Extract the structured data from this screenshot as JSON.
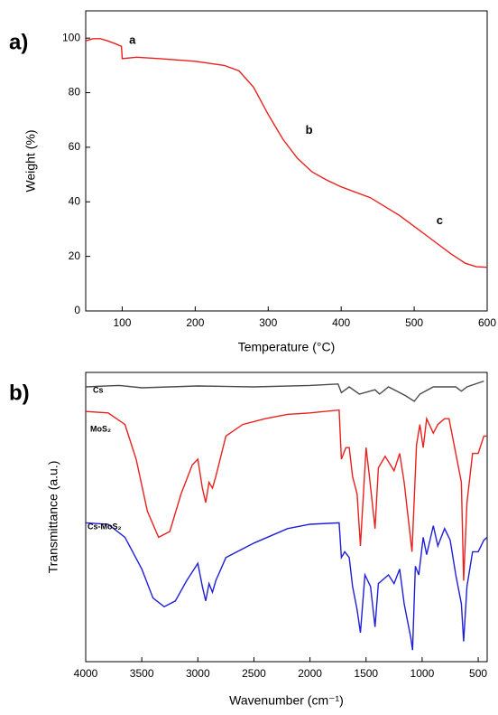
{
  "chart_data": [
    {
      "type": "line",
      "label": "a)",
      "xlabel": "Temperature (°C)",
      "ylabel": "Weight (%)",
      "xlim": [
        50,
        600
      ],
      "ylim": [
        0,
        110
      ],
      "xticks": [
        100,
        200,
        300,
        400,
        500,
        600
      ],
      "yticks": [
        0,
        20,
        40,
        60,
        80,
        100
      ],
      "series": [
        {
          "color": "#e8211f",
          "x": [
            50,
            60,
            70,
            80,
            90,
            99,
            100,
            120,
            150,
            200,
            240,
            260,
            280,
            300,
            320,
            340,
            360,
            380,
            400,
            440,
            480,
            520,
            550,
            570,
            585,
            600
          ],
          "values": [
            99,
            99.8,
            99.8,
            99,
            98,
            97,
            92.5,
            93,
            92.5,
            91.5,
            90,
            88,
            82,
            72,
            63,
            56,
            51,
            48,
            45.5,
            41.5,
            35,
            27,
            21,
            17.5,
            16.2,
            16
          ]
        }
      ],
      "annotations": [
        {
          "text": "a",
          "x": 114,
          "y": 99
        },
        {
          "text": "b",
          "x": 356,
          "y": 66
        },
        {
          "text": "c",
          "x": 535,
          "y": 33
        }
      ]
    },
    {
      "type": "line",
      "label": "b)",
      "xlabel": "Wavenumber (cm⁻¹)",
      "ylabel": "Transmittance (a.u.)",
      "xlim": [
        4000,
        420
      ],
      "ylim": [
        0,
        100
      ],
      "xticks": [
        4000,
        3500,
        3000,
        2500,
        2000,
        1500,
        1000,
        500
      ],
      "series": [
        {
          "name": "Cs",
          "color": "#4a4a4a",
          "x": [
            4000,
            3700,
            3500,
            3000,
            2500,
            2000,
            1750,
            1720,
            1650,
            1560,
            1420,
            1380,
            1300,
            1150,
            1070,
            1020,
            900,
            700,
            650,
            600,
            450
          ],
          "values": [
            95,
            95.5,
            94.7,
            95.3,
            95,
            95.5,
            96,
            93,
            95,
            92.5,
            94,
            92.5,
            95,
            92,
            90,
            92.5,
            95,
            95,
            93.5,
            95,
            97
          ]
        },
        {
          "name": "MoS₂",
          "color": "#e8211f",
          "x": [
            4000,
            3800,
            3650,
            3550,
            3450,
            3350,
            3250,
            3150,
            3050,
            3000,
            2960,
            2930,
            2900,
            2870,
            2840,
            2750,
            2600,
            2400,
            2200,
            2000,
            1740,
            1720,
            1680,
            1650,
            1620,
            1580,
            1550,
            1500,
            1470,
            1420,
            1390,
            1330,
            1250,
            1200,
            1160,
            1090,
            1050,
            1020,
            990,
            960,
            900,
            860,
            800,
            760,
            700,
            650,
            630,
            600,
            550,
            500,
            450,
            420
          ],
          "values": [
            86.5,
            86,
            82,
            70,
            52,
            43,
            45,
            58,
            68,
            70,
            60,
            55,
            62,
            60,
            64,
            78,
            82,
            84,
            85.5,
            86,
            87,
            70,
            74,
            74,
            64,
            58,
            40,
            74,
            64,
            46,
            67,
            71,
            66,
            72,
            62,
            38,
            75,
            82,
            74,
            84,
            79,
            82,
            84,
            84,
            72,
            62,
            28,
            55,
            72,
            72,
            78,
            78
          ]
        },
        {
          "name": "Cs-MoS₂",
          "color": "#1f1fd6",
          "x": [
            4000,
            3800,
            3650,
            3500,
            3400,
            3300,
            3200,
            3100,
            3000,
            2960,
            2930,
            2900,
            2870,
            2840,
            2750,
            2500,
            2200,
            2000,
            1740,
            1720,
            1690,
            1650,
            1620,
            1580,
            1550,
            1510,
            1460,
            1420,
            1390,
            1300,
            1250,
            1200,
            1160,
            1100,
            1085,
            1060,
            1030,
            990,
            960,
            900,
            860,
            800,
            750,
            700,
            650,
            630,
            600,
            550,
            500,
            450,
            420
          ],
          "values": [
            48,
            47.5,
            43,
            32,
            22,
            19,
            21,
            28,
            34,
            26,
            21,
            27,
            24,
            28,
            36,
            41,
            46,
            47.5,
            48,
            36,
            38,
            36,
            26,
            18,
            10,
            30,
            26,
            12,
            27,
            30,
            27,
            32,
            20,
            8,
            4,
            33,
            30,
            43,
            37,
            47,
            40,
            46,
            42,
            30,
            20,
            7,
            26,
            38,
            38,
            42,
            43
          ]
        }
      ]
    }
  ]
}
